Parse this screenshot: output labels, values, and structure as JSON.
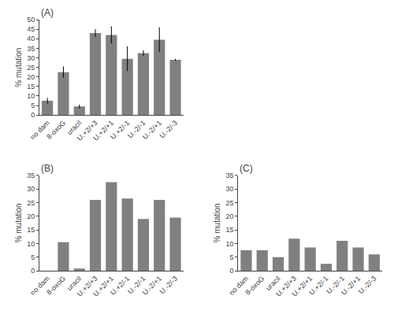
{
  "chart_data": [
    {
      "type": "bar",
      "title": "(A)",
      "categories": [
        "no dam",
        "8-oxoG",
        "uracil",
        "U.+2/+3",
        "U.+2/+1",
        "U.+2/-1",
        "U.-2/-1",
        "U.-2/+1",
        "U.-2/-3"
      ],
      "values": [
        7.5,
        22.5,
        4.5,
        43.0,
        42.0,
        29.5,
        32.5,
        39.5,
        29.0
      ],
      "errors": [
        1.5,
        3.0,
        1.0,
        2.0,
        4.5,
        6.5,
        1.5,
        6.5,
        0.5
      ],
      "color": "#808080",
      "ylabel": "% mutation",
      "ylim": [
        0,
        50
      ],
      "yticks": [
        0,
        5,
        10,
        15,
        20,
        25,
        30,
        35,
        40,
        45,
        50
      ],
      "grid": false
    },
    {
      "type": "bar",
      "title": "(B)",
      "categories": [
        "no dam",
        "8-oxoG",
        "uracil",
        "U.+2/+3",
        "U.+2/+1",
        "U.+2/-1",
        "U.-2/-1",
        "U.-2/+1",
        "U.-2/-3"
      ],
      "values": [
        0.0,
        10.5,
        0.8,
        26.0,
        32.5,
        26.5,
        19.0,
        26.0,
        19.5
      ],
      "color": "#808080",
      "ylabel": "% mutation",
      "ylim": [
        0,
        35
      ],
      "yticks": [
        0,
        5,
        10,
        15,
        20,
        25,
        30,
        35
      ],
      "grid": false
    },
    {
      "type": "bar",
      "title": "(C)",
      "categories": [
        "no dam",
        "8-oxoG",
        "uracil",
        "U.+2/+3",
        "U.+2/+1",
        "U.+2/-1",
        "U.-2/-1",
        "U.-2/+1",
        "U.-2/-3"
      ],
      "values": [
        7.5,
        7.5,
        5.0,
        11.8,
        8.5,
        2.5,
        11.0,
        8.5,
        6.0
      ],
      "color": "#808080",
      "ylabel": "% mutation",
      "ylim": [
        0,
        35
      ],
      "yticks": [
        0,
        5,
        10,
        15,
        20,
        25,
        30,
        35
      ],
      "grid": false
    }
  ]
}
